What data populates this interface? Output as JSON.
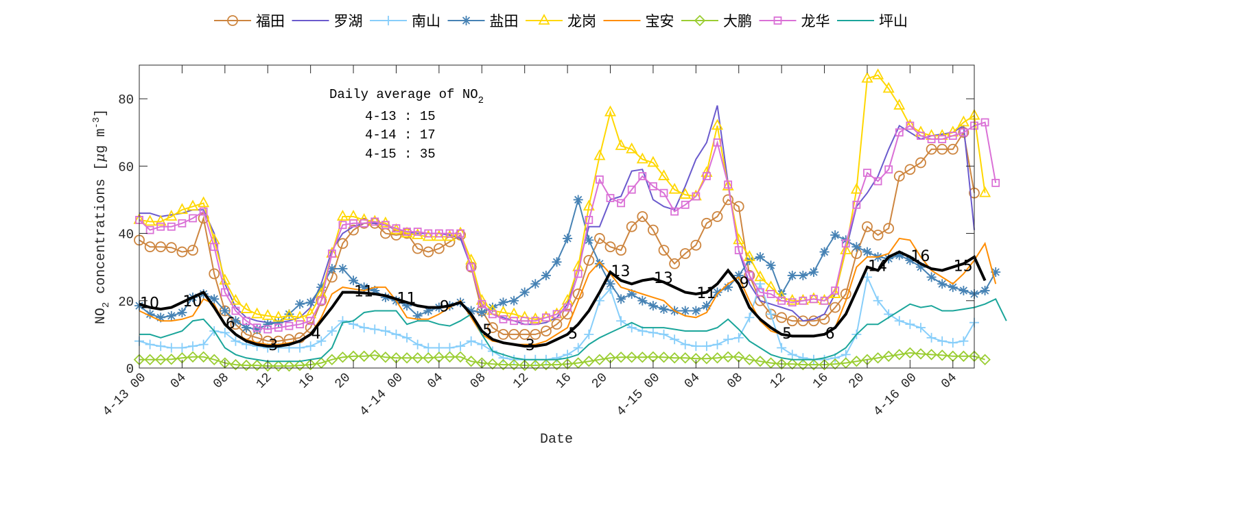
{
  "chart_data": {
    "type": "line",
    "xlabel": "Date",
    "ylabel": "NO2 concentrations [μg m-3]",
    "ylim": [
      0,
      90
    ],
    "yticks": [
      0,
      20,
      40,
      60,
      80
    ],
    "x_start_label": "4-13 00",
    "x_unit": "hour",
    "xlim_hours": [
      0,
      78
    ],
    "xtick_labels": [
      "4-13 00",
      "04",
      "08",
      "12",
      "16",
      "20",
      "4-14 00",
      "04",
      "08",
      "12",
      "16",
      "20",
      "4-15 00",
      "04",
      "08",
      "12",
      "16",
      "20",
      "4-16 00",
      "04"
    ],
    "grid": false,
    "legend_placement": "top-outside",
    "annotation": {
      "title": "Daily average of NO",
      "title_sub": "2",
      "lines": [
        "4-13 : 15",
        "4-14 : 17",
        "4-15 : 35"
      ]
    },
    "series": [
      {
        "name": "福田",
        "color": "#cd853f",
        "marker": "circle",
        "values": [
          38,
          36,
          36,
          35.8,
          34.5,
          35,
          44.5,
          28,
          17,
          13,
          10,
          9,
          8,
          8,
          8.5,
          9,
          12,
          20,
          27,
          37,
          41,
          43,
          43,
          40,
          39.5,
          40,
          35.5,
          34.5,
          35.5,
          37.5,
          39.5,
          30,
          17,
          12,
          10,
          10,
          10,
          10,
          11,
          13,
          16,
          22,
          32,
          38.5,
          36,
          35,
          42,
          45,
          41,
          35,
          31,
          34,
          36.5,
          43,
          45,
          50,
          48,
          27.5,
          20,
          16,
          15,
          14,
          14,
          14,
          14.5,
          18,
          22,
          34,
          42,
          39.5,
          41.5,
          57,
          59,
          61,
          65,
          65,
          65,
          70,
          52
        ]
      },
      {
        "name": "罗湖",
        "color": "#6a5acd",
        "marker": "none",
        "values": [
          46,
          46,
          45,
          45.5,
          46,
          47,
          47,
          40,
          25,
          18,
          15,
          14,
          13.5,
          13.5,
          14,
          15,
          18,
          25,
          35,
          40,
          42,
          43,
          43,
          42.5,
          41,
          40.5,
          40,
          40,
          40,
          39.5,
          38.5,
          30,
          19,
          16,
          15,
          14,
          13,
          13,
          13.5,
          15,
          19,
          30,
          42,
          42,
          50,
          51,
          58.5,
          59,
          50,
          48,
          47,
          54,
          62,
          67,
          78,
          55,
          35,
          25,
          20,
          19,
          18,
          17,
          14,
          14.5,
          16,
          22,
          35,
          48,
          52,
          57,
          65,
          72,
          70,
          68,
          69,
          69.5,
          70,
          72,
          41
        ]
      },
      {
        "name": "南山",
        "color": "#87cefa",
        "marker": "plus",
        "values": [
          8,
          7,
          6.5,
          6,
          6,
          6.5,
          7,
          11,
          10.5,
          8,
          7,
          6.5,
          6,
          6,
          6,
          6,
          6.5,
          8,
          11,
          14,
          13,
          12,
          11.5,
          11,
          10,
          9,
          7,
          6,
          6,
          6,
          6.5,
          8,
          7,
          5,
          3,
          2.5,
          2.5,
          2.5,
          2.5,
          3,
          4,
          6,
          10,
          20,
          23.5,
          14,
          12,
          11,
          10.5,
          10,
          8.5,
          7,
          6.5,
          6.5,
          7,
          8.5,
          9,
          15,
          25,
          16,
          6,
          4,
          3,
          2.5,
          2.5,
          3,
          4,
          10,
          27,
          20,
          16,
          14,
          13,
          12,
          9,
          8,
          7.5,
          8,
          13.5
        ]
      },
      {
        "name": "盐田",
        "color": "#4682b4",
        "marker": "asterisk",
        "values": [
          18.5,
          16,
          15,
          15.5,
          16.5,
          21,
          22,
          20.5,
          17,
          14,
          12,
          11.5,
          13,
          13.5,
          16,
          19,
          19.5,
          24,
          29.5,
          29.5,
          26,
          24,
          23,
          21,
          20,
          18.5,
          15.5,
          17,
          18,
          18.5,
          19.5,
          17,
          16.5,
          18,
          19.5,
          20,
          22.5,
          25,
          27.5,
          31.5,
          38.5,
          50,
          38,
          31,
          25,
          20.5,
          22,
          20,
          18.5,
          17.5,
          17,
          17,
          17,
          18.5,
          22.5,
          24,
          27.5,
          32,
          33,
          30.5,
          22,
          27.5,
          27.5,
          28.5,
          34.5,
          39.5,
          38,
          36,
          34.5,
          33,
          32.5,
          33.5,
          32,
          30,
          27,
          25,
          24,
          23,
          22,
          23,
          28.5
        ]
      },
      {
        "name": "龙岗",
        "color": "#ffd700",
        "marker": "triangle",
        "values": [
          44,
          43.5,
          43.5,
          45,
          47,
          48,
          49,
          38,
          26,
          20,
          17.5,
          16,
          15.5,
          15,
          15.5,
          15,
          16,
          22,
          34,
          45,
          45,
          44,
          43.5,
          43,
          41,
          40,
          39.5,
          39,
          39,
          39,
          40,
          32,
          20,
          17,
          16.5,
          16,
          15,
          14.5,
          15,
          16,
          20,
          30,
          48,
          63,
          76,
          66,
          65,
          62,
          61,
          57,
          53,
          51.5,
          51,
          58,
          72,
          54,
          38,
          33,
          27,
          24,
          21,
          20,
          20,
          20.5,
          20,
          22,
          35,
          53,
          86,
          87,
          83,
          78,
          72,
          70,
          69,
          69,
          70,
          73,
          75,
          52
        ]
      },
      {
        "name": "宝安",
        "color": "#ff8c00",
        "marker": "none",
        "values": [
          17,
          15.5,
          14,
          14,
          14.5,
          15.5,
          20.5,
          19,
          13,
          10,
          8.5,
          7.5,
          7,
          7,
          7.5,
          8,
          10,
          15,
          22,
          24,
          23.5,
          23,
          24,
          24,
          20,
          15,
          14.5,
          14.5,
          16,
          18,
          20,
          15,
          10,
          8,
          7.5,
          7,
          7,
          7,
          8,
          10,
          12,
          20,
          28,
          31.5,
          28,
          24,
          23,
          22,
          21,
          20,
          17,
          15.5,
          15,
          16.5,
          22,
          25,
          27,
          20,
          14,
          11,
          10,
          9.5,
          9.5,
          9.5,
          10,
          12,
          20,
          30,
          33,
          33,
          34,
          38.5,
          38,
          33,
          29,
          27,
          25,
          28,
          32,
          37,
          25
        ]
      },
      {
        "name": "大鹏",
        "color": "#9acd32",
        "marker": "diamond",
        "values": [
          2.5,
          2.5,
          2.5,
          2.6,
          3,
          3.3,
          3.3,
          2.5,
          1.5,
          1,
          0.8,
          0.8,
          0.6,
          0.6,
          0.6,
          0.8,
          1,
          1.5,
          2.5,
          3.2,
          3.5,
          3.5,
          3.8,
          3.2,
          3,
          3,
          3,
          3,
          3.2,
          3.3,
          3.3,
          2,
          1.5,
          1.2,
          1,
          1,
          0.8,
          0.8,
          1,
          1,
          1.2,
          1.5,
          2,
          2.5,
          3,
          3.2,
          3.2,
          3.2,
          3.3,
          3.2,
          3,
          3,
          2.8,
          2.8,
          3,
          3.3,
          3.3,
          2.5,
          2,
          1.5,
          1.2,
          1.2,
          1,
          1,
          1,
          1.2,
          1.5,
          2,
          2.5,
          3,
          3.5,
          4,
          4.5,
          4.2,
          4,
          3.8,
          3.5,
          3.5,
          3.5,
          2.5
        ]
      },
      {
        "name": "龙华",
        "color": "#da70d6",
        "marker": "square",
        "values": [
          44,
          41,
          42,
          42,
          43,
          44.5,
          46.5,
          36,
          22.5,
          17,
          14,
          12,
          11.5,
          12,
          12.5,
          13,
          14,
          20,
          34,
          42.5,
          43,
          43,
          43.5,
          42.5,
          41.5,
          40.5,
          40.5,
          40,
          40,
          40,
          40,
          30,
          19,
          16,
          14.5,
          14,
          14,
          14,
          15,
          16,
          18,
          28,
          44,
          56,
          50.5,
          49,
          53,
          57,
          54,
          52,
          46.5,
          48.5,
          51,
          57,
          67,
          54.5,
          35,
          27.5,
          22.5,
          22,
          20,
          19.5,
          20,
          20.5,
          20,
          23,
          37,
          48.5,
          58,
          55.5,
          59,
          70,
          72,
          69,
          68,
          68,
          69,
          70,
          72,
          73,
          55
        ]
      },
      {
        "name": "坪山",
        "color": "#1aa59a",
        "marker": "none",
        "values": [
          10,
          10,
          9,
          10,
          11,
          14,
          14.5,
          11,
          6,
          4,
          3,
          2.5,
          2,
          2,
          2,
          2,
          2.5,
          3,
          6,
          13.5,
          14,
          16.5,
          17,
          17,
          17,
          13,
          14,
          14,
          13,
          12.5,
          14,
          16,
          10,
          5,
          4,
          3,
          2.5,
          2.5,
          2.5,
          2.5,
          3,
          4,
          7,
          9,
          10.5,
          12,
          13.5,
          12,
          12,
          12,
          11.5,
          11,
          11,
          11,
          12,
          14.5,
          11.5,
          8,
          6,
          4,
          3,
          2.5,
          2.5,
          2.5,
          3,
          4,
          6,
          10,
          13,
          13,
          15,
          17,
          19,
          18,
          18.5,
          17,
          17,
          17.5,
          18,
          19,
          20.5,
          14
        ]
      }
    ],
    "average": {
      "color": "#000000",
      "values": [
        19,
        18,
        17.5,
        18,
        19.5,
        21,
        22.5,
        18,
        13,
        10,
        8,
        7,
        6.5,
        6.5,
        7,
        8,
        10,
        14,
        18,
        22.5,
        22.5,
        22.3,
        22,
        21.5,
        20.5,
        19.5,
        18.5,
        18,
        18,
        18.5,
        19.5,
        16,
        11,
        8.5,
        7.5,
        7,
        6.5,
        6.5,
        7,
        8.5,
        10,
        13,
        17,
        22.5,
        28.5,
        26,
        25,
        26,
        26.5,
        25.5,
        24,
        22.5,
        22,
        22.5,
        25,
        29,
        25,
        18,
        14.5,
        12,
        10,
        9.5,
        9.5,
        9.5,
        10,
        12,
        16,
        23,
        30,
        29,
        33,
        34.5,
        33,
        31,
        29.5,
        29,
        30,
        31,
        33,
        26
      ],
      "label_hours": [
        0,
        4,
        8,
        12,
        16,
        20,
        24,
        28,
        32,
        36,
        40,
        44,
        48,
        52,
        56,
        60,
        64,
        68,
        72,
        76
      ],
      "labels": [
        "10",
        "10",
        "6",
        "3",
        "4",
        "11",
        "11",
        "9",
        "5",
        "3",
        "5",
        "13",
        "13",
        "11",
        "9",
        "5",
        "6",
        "14",
        "16",
        "15"
      ]
    }
  }
}
